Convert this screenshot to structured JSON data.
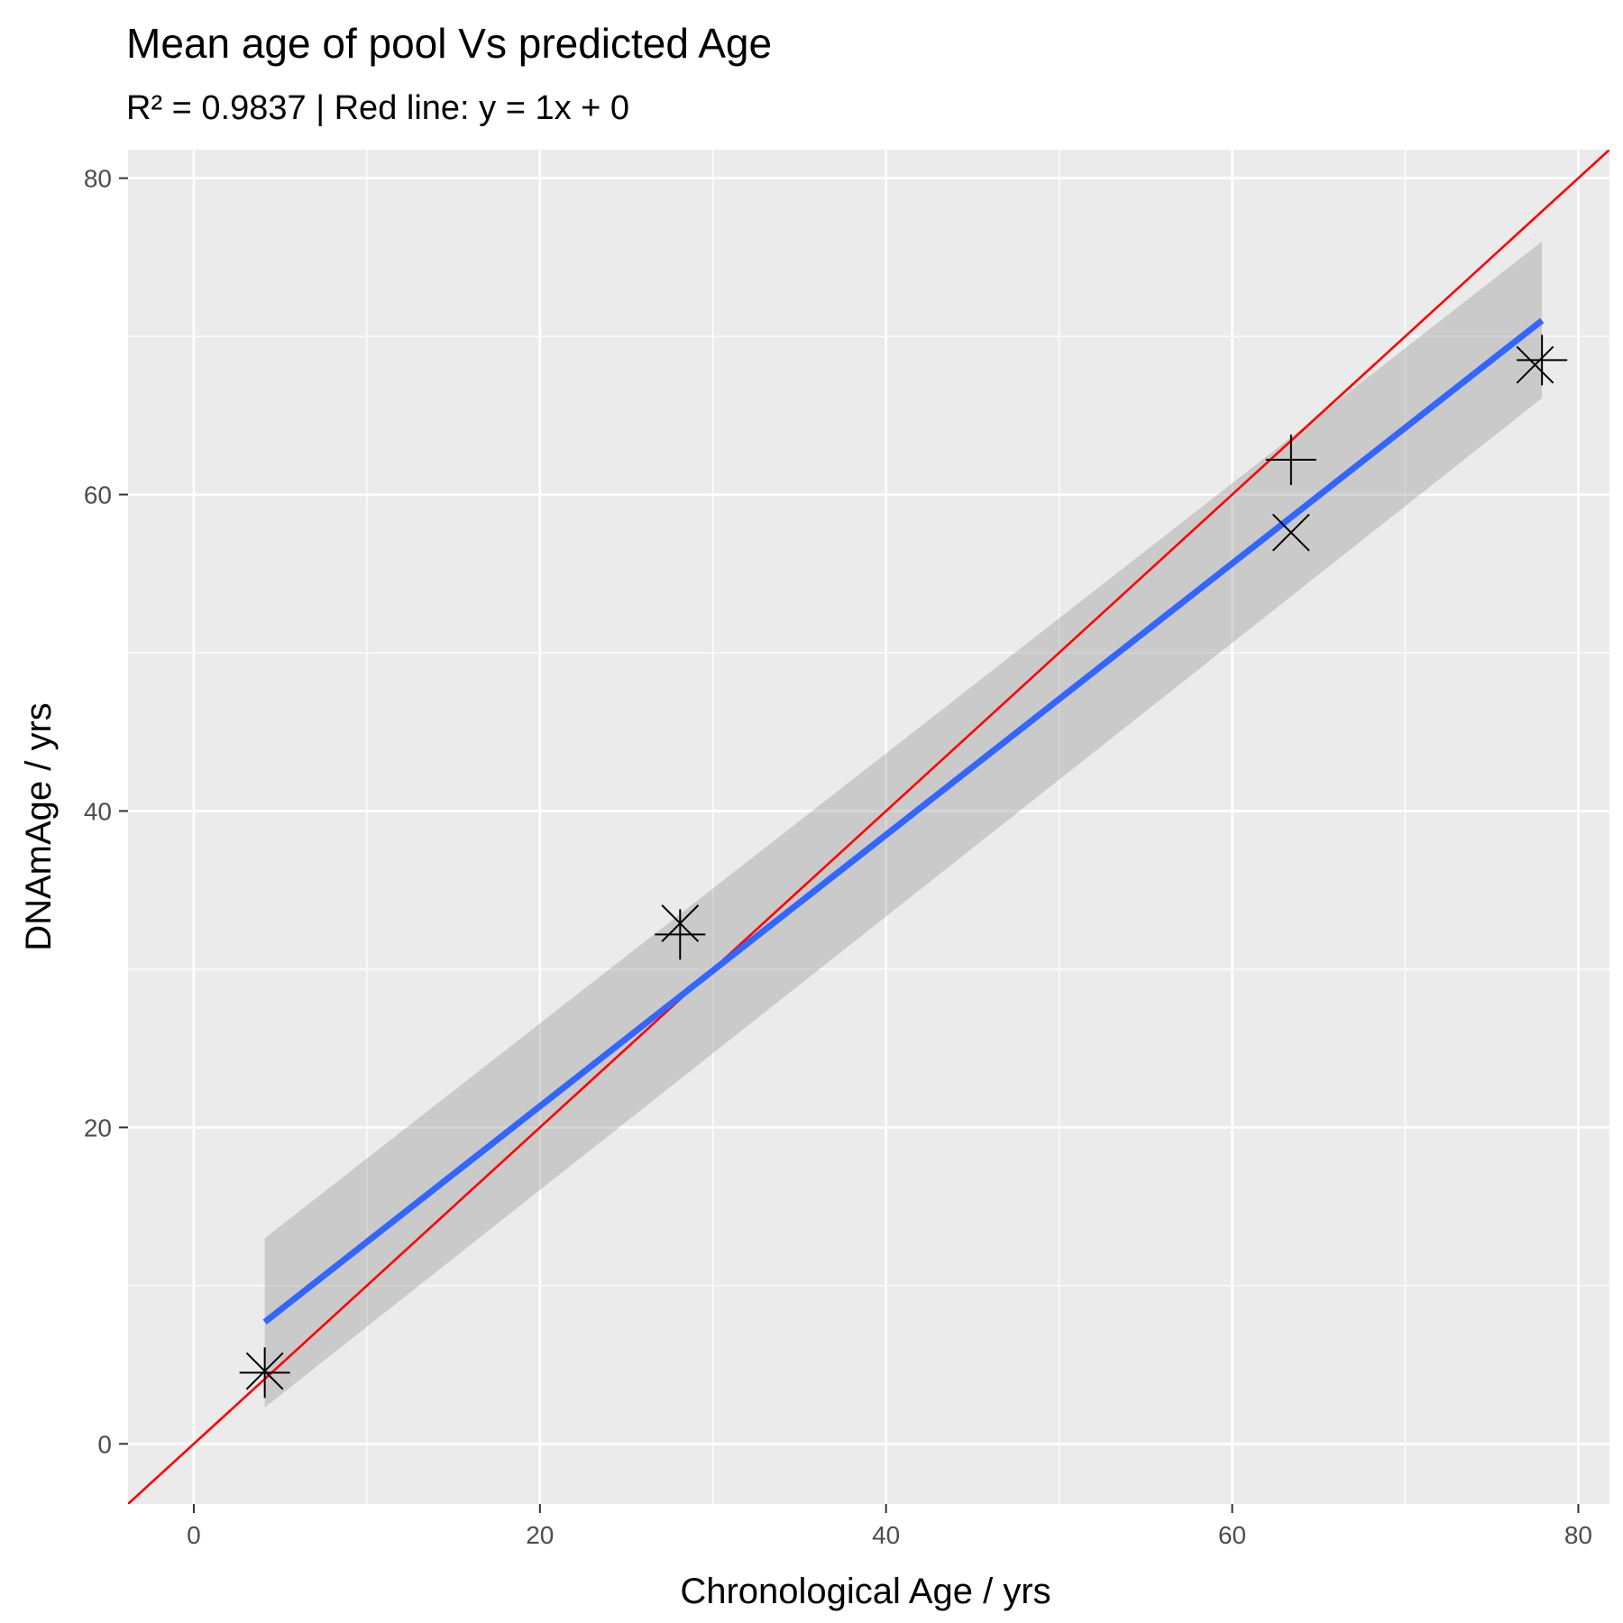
{
  "chart_data": {
    "type": "scatter",
    "title": "Mean age of pool Vs predicted Age",
    "subtitle": "R² = 0.9837 | Red line: y = 1x + 0",
    "xlabel": "Chronological Age / yrs",
    "ylabel": "DNAmAge / yrs",
    "xlim": [
      -3.8,
      81.8
    ],
    "ylim": [
      -3.8,
      81.8
    ],
    "x_ticks": [
      0,
      20,
      40,
      60,
      80
    ],
    "y_ticks": [
      0,
      20,
      40,
      60,
      80
    ],
    "x_minor": [
      10,
      30,
      50,
      70
    ],
    "y_minor": [
      10,
      30,
      50,
      70
    ],
    "x_tick_labels": [
      "0",
      "20",
      "40",
      "60",
      "80"
    ],
    "y_tick_labels": [
      "0",
      "20",
      "40",
      "60",
      "80"
    ],
    "grid": true,
    "series": [
      {
        "name": "plus",
        "shape": "plus",
        "points": [
          [
            4.1,
            4.5
          ],
          [
            28.1,
            32.2
          ],
          [
            63.4,
            62.2
          ],
          [
            77.9,
            68.5
          ]
        ]
      },
      {
        "name": "cross",
        "shape": "cross",
        "points": [
          [
            4.1,
            4.6
          ],
          [
            28.1,
            32.9
          ],
          [
            63.4,
            57.6
          ],
          [
            77.5,
            68.2
          ]
        ]
      }
    ],
    "identity_line": {
      "slope": 1,
      "intercept": 0,
      "color": "#ff0000"
    },
    "fit_line": {
      "x": [
        4.1,
        77.9
      ],
      "y": [
        7.7,
        71.0
      ],
      "color": "#3366ff"
    },
    "confidence_band": {
      "x": [
        4.1,
        77.9
      ],
      "lower": [
        2.3,
        66.1
      ],
      "upper": [
        13.0,
        76.0
      ],
      "color": "#999999"
    },
    "colors": {
      "panel": "#ebebeb",
      "grid": "#ffffff",
      "points": "#000000",
      "ticks": "#333333"
    }
  }
}
